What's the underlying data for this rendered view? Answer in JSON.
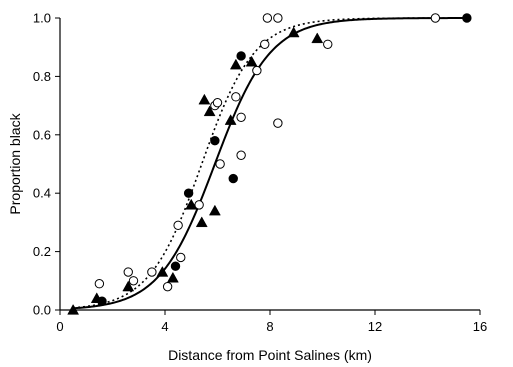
{
  "chart_data": {
    "type": "scatter",
    "xlabel": "Distance from Point Salines (km)",
    "ylabel": "Proportion black",
    "xlim": [
      0,
      16
    ],
    "ylim": [
      0,
      1.0
    ],
    "xticks": [
      0,
      4,
      8,
      12,
      16
    ],
    "xtick_labels": [
      "0",
      "4",
      "8",
      "12",
      "16"
    ],
    "yticks": [
      0,
      0.2,
      0.4,
      0.6,
      0.8,
      1.0
    ],
    "ytick_labels": [
      "0.0",
      "0.2",
      "0.4",
      "0.6",
      "0.8",
      "1.0"
    ],
    "grid": false,
    "series": [
      {
        "marker": "filled-circle",
        "color": "#000000",
        "points": [
          [
            1.6,
            0.03
          ],
          [
            4.4,
            0.15
          ],
          [
            4.9,
            0.4
          ],
          [
            5.9,
            0.58
          ],
          [
            6.6,
            0.45
          ],
          [
            6.9,
            0.87
          ],
          [
            15.5,
            1.0
          ]
        ]
      },
      {
        "marker": "open-circle",
        "color": "#000000",
        "points": [
          [
            1.5,
            0.09
          ],
          [
            2.6,
            0.13
          ],
          [
            2.8,
            0.1
          ],
          [
            3.5,
            0.13
          ],
          [
            4.1,
            0.08
          ],
          [
            4.5,
            0.29
          ],
          [
            4.6,
            0.18
          ],
          [
            5.3,
            0.36
          ],
          [
            5.9,
            0.7
          ],
          [
            6.0,
            0.71
          ],
          [
            6.1,
            0.5
          ],
          [
            6.7,
            0.73
          ],
          [
            6.9,
            0.66
          ],
          [
            6.9,
            0.53
          ],
          [
            7.5,
            0.82
          ],
          [
            7.8,
            0.91
          ],
          [
            7.9,
            1.0
          ],
          [
            8.3,
            0.64
          ],
          [
            8.3,
            1.0
          ],
          [
            10.2,
            0.91
          ],
          [
            14.3,
            1.0
          ]
        ]
      },
      {
        "marker": "filled-triangle",
        "color": "#000000",
        "points": [
          [
            0.5,
            0.0
          ],
          [
            1.4,
            0.04
          ],
          [
            2.6,
            0.08
          ],
          [
            3.9,
            0.13
          ],
          [
            4.3,
            0.11
          ],
          [
            5.0,
            0.36
          ],
          [
            5.0,
            0.36
          ],
          [
            5.4,
            0.3
          ],
          [
            5.5,
            0.72
          ],
          [
            5.7,
            0.68
          ],
          [
            5.9,
            0.34
          ],
          [
            6.5,
            0.65
          ],
          [
            6.7,
            0.84
          ],
          [
            7.3,
            0.85
          ],
          [
            8.9,
            0.95
          ],
          [
            9.8,
            0.93
          ]
        ]
      }
    ],
    "curves": [
      {
        "style": "solid",
        "color": "#000000",
        "center_km": 5.9,
        "slope": 0.95
      },
      {
        "style": "dotted",
        "color": "#000000",
        "center_km": 5.4,
        "slope": 1.0
      }
    ]
  }
}
